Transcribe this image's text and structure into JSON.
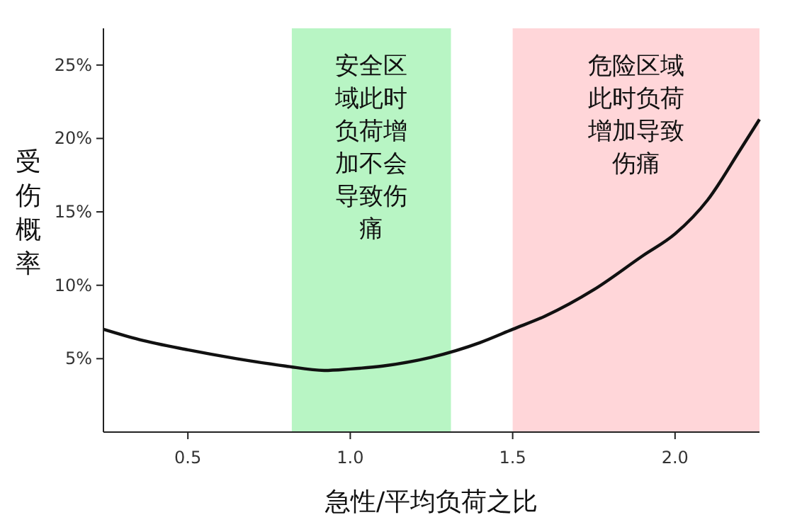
{
  "chart_data": {
    "type": "line",
    "xlabel": "急性/平均负荷之比",
    "ylabel": "受伤概率",
    "xlim": [
      0.24,
      2.26
    ],
    "ylim": [
      0,
      27.5
    ],
    "xticks": [
      0.5,
      {
        "value": 1,
        "label": "1.0"
      },
      1.5,
      {
        "value": 2,
        "label": "2.0"
      }
    ],
    "yticks": [
      {
        "value": 5,
        "label": "5%"
      },
      {
        "value": 10,
        "label": "10%"
      },
      {
        "value": 15,
        "label": "15%"
      },
      {
        "value": 20,
        "label": "20%"
      },
      {
        "value": 25,
        "label": "25%"
      }
    ],
    "grid": false,
    "bands": [
      {
        "axis": "x",
        "from": 0.82,
        "to": 1.31,
        "label": "安全区域此时负荷增加不会导致伤痛",
        "color": "#b8f5c4"
      },
      {
        "axis": "x",
        "from": 1.5,
        "to": 2.26,
        "label": "危险区域此时负荷增加导致伤痛",
        "color": "#ffd6d9"
      }
    ],
    "series": [
      {
        "color": "#111111",
        "x": [
          0.24,
          0.35,
          0.5,
          0.65,
          0.8,
          0.92,
          1.0,
          1.1,
          1.25,
          1.4,
          1.5,
          1.6,
          1.75,
          1.9,
          2.0,
          2.1,
          2.2,
          2.26
        ],
        "values": [
          7.0,
          6.3,
          5.6,
          5.0,
          4.5,
          4.2,
          4.3,
          4.5,
          5.1,
          6.1,
          7.0,
          7.9,
          9.7,
          12.0,
          13.5,
          15.8,
          19.2,
          21.3
        ]
      }
    ]
  }
}
